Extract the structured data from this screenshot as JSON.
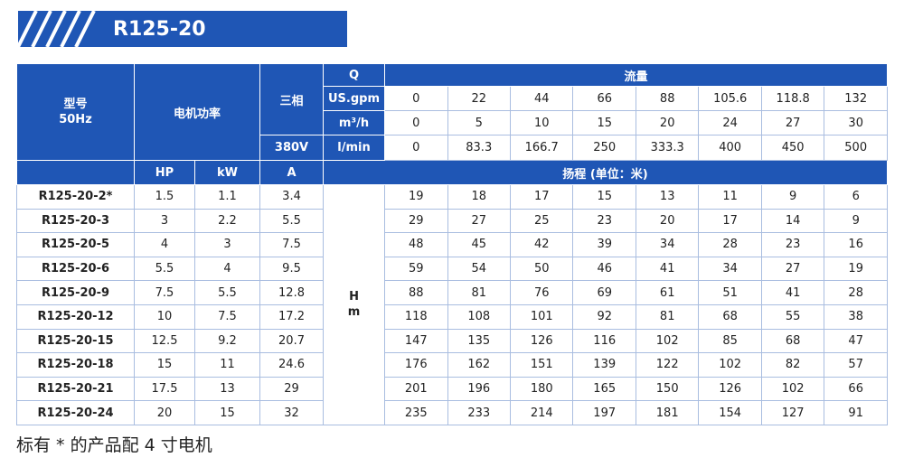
{
  "header": {
    "title": "R125-20"
  },
  "table": {
    "model_label": [
      "型号",
      "50Hz"
    ],
    "power_label": "电机功率",
    "phase_label": "三相",
    "voltage": "380V",
    "q_label": "Q",
    "flow_label": "流量",
    "flow_rows": [
      {
        "unit": "US.gpm",
        "values": [
          0,
          22,
          44,
          66,
          88,
          105.6,
          118.8,
          132
        ]
      },
      {
        "unit": "m³/h",
        "values": [
          0,
          5,
          10,
          15,
          20,
          24,
          27,
          30
        ]
      },
      {
        "unit": "l/min",
        "values": [
          0,
          83.3,
          166.7,
          250,
          333.3,
          400,
          450,
          500
        ]
      }
    ],
    "units": [
      "HP",
      "kW",
      "A"
    ],
    "head_label": "扬程 (单位：米)",
    "h_label": [
      "H",
      "m"
    ],
    "rows": [
      {
        "model": "R125-20-2*",
        "hp": 1.5,
        "kw": 1.1,
        "a": 3.4,
        "head": [
          19,
          18,
          17,
          15,
          13,
          11,
          9,
          6
        ]
      },
      {
        "model": "R125-20-3",
        "hp": 3,
        "kw": 2.2,
        "a": 5.5,
        "head": [
          29,
          27,
          25,
          23,
          20,
          17,
          14,
          9
        ]
      },
      {
        "model": "R125-20-5",
        "hp": 4,
        "kw": 3,
        "a": 7.5,
        "head": [
          48,
          45,
          42,
          39,
          34,
          28,
          23,
          16
        ]
      },
      {
        "model": "R125-20-6",
        "hp": 5.5,
        "kw": 4,
        "a": 9.5,
        "head": [
          59,
          54,
          50,
          46,
          41,
          34,
          27,
          19
        ]
      },
      {
        "model": "R125-20-9",
        "hp": 7.5,
        "kw": 5.5,
        "a": 12.8,
        "head": [
          88,
          81,
          76,
          69,
          61,
          51,
          41,
          28
        ]
      },
      {
        "model": "R125-20-12",
        "hp": 10,
        "kw": 7.5,
        "a": 17.2,
        "head": [
          118,
          108,
          101,
          92,
          81,
          68,
          55,
          38
        ]
      },
      {
        "model": "R125-20-15",
        "hp": 12.5,
        "kw": 9.2,
        "a": 20.7,
        "head": [
          147,
          135,
          126,
          116,
          102,
          85,
          68,
          47
        ]
      },
      {
        "model": "R125-20-18",
        "hp": 15,
        "kw": 11,
        "a": 24.6,
        "head": [
          176,
          162,
          151,
          139,
          122,
          102,
          82,
          57
        ]
      },
      {
        "model": "R125-20-21",
        "hp": 17.5,
        "kw": 13,
        "a": 29,
        "head": [
          201,
          196,
          180,
          165,
          150,
          126,
          102,
          66
        ]
      },
      {
        "model": "R125-20-24",
        "hp": 20,
        "kw": 15,
        "a": 32,
        "head": [
          235,
          233,
          214,
          197,
          181,
          154,
          127,
          91
        ]
      }
    ]
  },
  "footnote": "标有 * 的产品配 4 寸电机"
}
